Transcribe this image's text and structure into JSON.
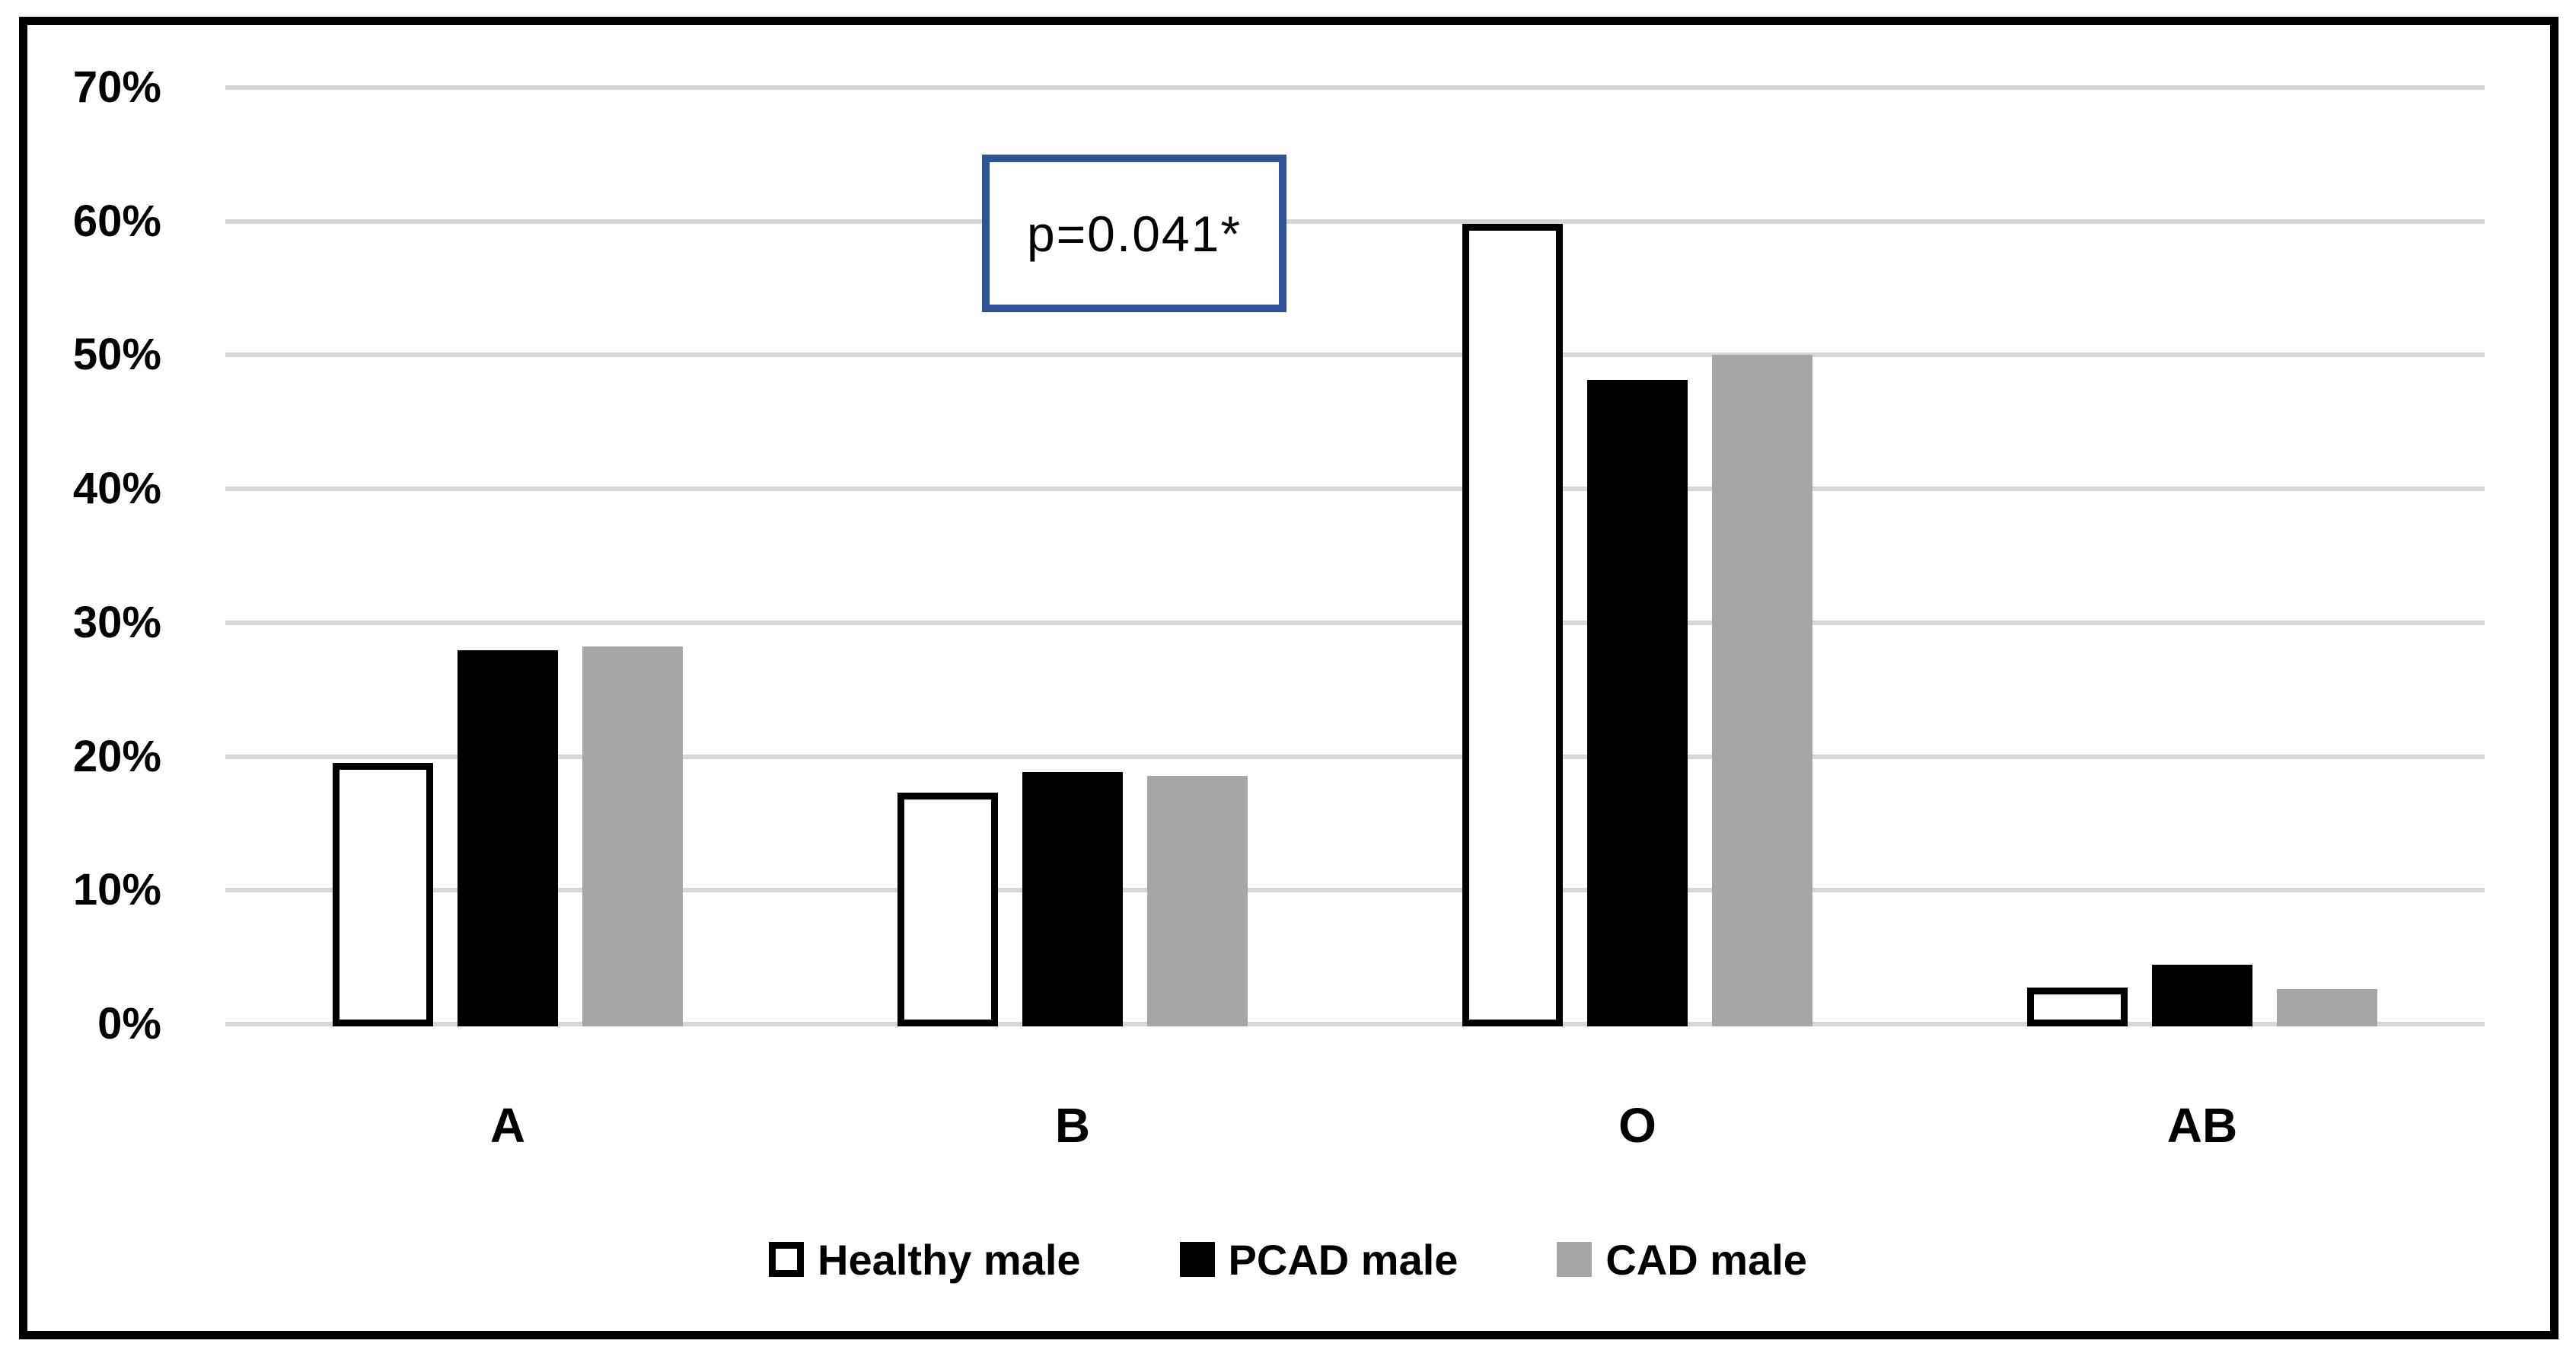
{
  "chart_data": {
    "type": "bar",
    "title": "",
    "categories": [
      "A",
      "B",
      "O",
      "AB"
    ],
    "series": [
      {
        "name": "Healthy male",
        "values": [
          19.7,
          17.5,
          60.0,
          2.9
        ],
        "fill": "#ffffff",
        "outline": "#000000"
      },
      {
        "name": "PCAD male",
        "values": [
          28.1,
          19.0,
          48.3,
          4.6
        ],
        "fill": "#000000"
      },
      {
        "name": "CAD male",
        "values": [
          28.4,
          18.7,
          50.2,
          2.8
        ],
        "fill": "#a6a6a6"
      }
    ],
    "xlabel": "",
    "ylabel": "",
    "ylim": [
      0,
      70
    ],
    "ytick_step": 10,
    "ytick_labels": [
      "0%",
      "10%",
      "20%",
      "30%",
      "40%",
      "50%",
      "60%",
      "70%"
    ],
    "grid": true,
    "gridline_color": "#d6d6d6",
    "legend_position": "bottom",
    "frame_color": "#000000",
    "annotation": {
      "text": "p=0.041*",
      "border_color": "#2f5496"
    }
  }
}
